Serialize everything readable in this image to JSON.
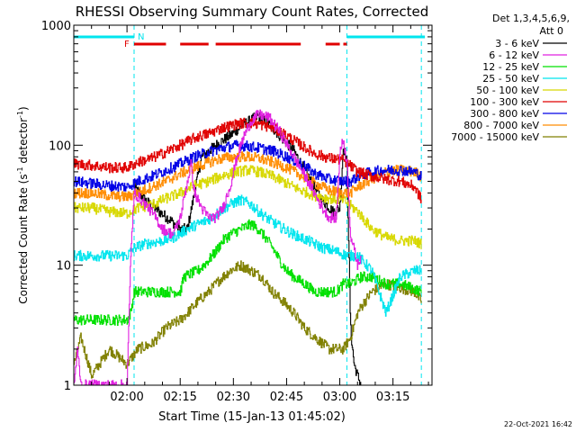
{
  "chart_data": {
    "type": "line",
    "title": "RHESSI Observing Summary Count Rates, Corrected",
    "xlabel": "Start Time (15-Jan-13 01:45:02)",
    "ylabel_main": "Corrected Count Rate (s",
    "ylabel_sup1": "-1",
    "ylabel_mid": " detector",
    "ylabel_sup2": "-1",
    "ylabel_end": ")",
    "x_unit": "minutes since 01:45:02",
    "xlim": [
      0,
      101
    ],
    "ylim": [
      1,
      1000
    ],
    "y_scale": "log",
    "x_ticks": [
      {
        "t": 15,
        "label": "02:00"
      },
      {
        "t": 30,
        "label": "02:15"
      },
      {
        "t": 45,
        "label": "02:30"
      },
      {
        "t": 60,
        "label": "02:45"
      },
      {
        "t": 75,
        "label": "03:00"
      },
      {
        "t": 90,
        "label": "03:15"
      }
    ],
    "y_ticks": [
      {
        "v": 1,
        "label": "1"
      },
      {
        "v": 10,
        "label": "10"
      },
      {
        "v": 100,
        "label": "100"
      },
      {
        "v": 1000,
        "label": "1000"
      }
    ],
    "legend_header": [
      "Det 1,3,4,5,6,9,",
      "Att 0"
    ],
    "legend_position": "right",
    "flags": {
      "night_label": "N",
      "flare_label": "F",
      "night_color": "#00e5ee",
      "flare_color": "#e00000",
      "night_bars": [
        [
          0,
          17
        ],
        [
          77,
          99
        ]
      ],
      "flare_bars": [
        [
          17,
          26
        ],
        [
          30,
          38
        ],
        [
          40,
          64
        ],
        [
          71,
          75
        ],
        [
          76,
          77
        ]
      ],
      "night_dashed_lines": [
        17,
        77,
        98
      ]
    },
    "series": [
      {
        "name": "3 - 6 keV",
        "color": "#000000",
        "points": [
          [
            17,
            45
          ],
          [
            20,
            35
          ],
          [
            24,
            28
          ],
          [
            27,
            24
          ],
          [
            30,
            20
          ],
          [
            32,
            20
          ],
          [
            34,
            40
          ],
          [
            36,
            80
          ],
          [
            40,
            100
          ],
          [
            44,
            120
          ],
          [
            48,
            150
          ],
          [
            52,
            175
          ],
          [
            55,
            150
          ],
          [
            58,
            120
          ],
          [
            62,
            90
          ],
          [
            66,
            55
          ],
          [
            70,
            35
          ],
          [
            73,
            28
          ],
          [
            75,
            30
          ],
          [
            76,
            100
          ],
          [
            77,
            70
          ],
          [
            78,
            3
          ],
          [
            79,
            1.5
          ],
          [
            80,
            1.2
          ],
          [
            81,
            1
          ]
        ]
      },
      {
        "name": "6 - 12 keV",
        "color": "#e020e0",
        "points": [
          [
            0,
            1
          ],
          [
            1,
            2
          ],
          [
            2,
            1
          ],
          [
            15,
            1
          ],
          [
            16,
            12
          ],
          [
            17,
            40
          ],
          [
            19,
            35
          ],
          [
            21,
            30
          ],
          [
            23,
            25
          ],
          [
            25,
            20
          ],
          [
            28,
            18
          ],
          [
            30,
            25
          ],
          [
            32,
            50
          ],
          [
            33,
            70
          ],
          [
            34,
            40
          ],
          [
            36,
            30
          ],
          [
            38,
            25
          ],
          [
            40,
            25
          ],
          [
            42,
            30
          ],
          [
            44,
            45
          ],
          [
            46,
            80
          ],
          [
            48,
            120
          ],
          [
            50,
            160
          ],
          [
            52,
            180
          ],
          [
            55,
            170
          ],
          [
            58,
            130
          ],
          [
            62,
            80
          ],
          [
            66,
            50
          ],
          [
            70,
            30
          ],
          [
            72,
            25
          ],
          [
            74,
            25
          ],
          [
            75,
            90
          ],
          [
            76,
            110
          ],
          [
            77,
            70
          ],
          [
            78,
            18
          ],
          [
            80,
            10
          ],
          [
            81,
            12
          ]
        ]
      },
      {
        "name": "12 - 25 keV",
        "color": "#00e000",
        "points": [
          [
            0,
            3.5
          ],
          [
            15,
            3.5
          ],
          [
            16,
            4
          ],
          [
            17,
            6
          ],
          [
            30,
            6
          ],
          [
            31,
            8
          ],
          [
            35,
            9
          ],
          [
            38,
            11
          ],
          [
            40,
            13
          ],
          [
            42,
            16
          ],
          [
            44,
            18
          ],
          [
            47,
            20
          ],
          [
            50,
            22
          ],
          [
            52,
            20
          ],
          [
            54,
            17
          ],
          [
            56,
            14
          ],
          [
            58,
            11
          ],
          [
            60,
            9
          ],
          [
            62,
            8
          ],
          [
            65,
            7
          ],
          [
            68,
            6
          ],
          [
            74,
            6
          ],
          [
            76,
            7
          ],
          [
            78,
            7
          ],
          [
            81,
            8
          ],
          [
            84,
            8
          ],
          [
            88,
            7
          ],
          [
            92,
            7
          ],
          [
            95,
            6.5
          ],
          [
            98,
            6
          ]
        ]
      },
      {
        "name": "25 - 50 keV",
        "color": "#00e5ee",
        "points": [
          [
            0,
            12
          ],
          [
            10,
            12
          ],
          [
            15,
            12
          ],
          [
            17,
            14
          ],
          [
            20,
            15
          ],
          [
            25,
            16
          ],
          [
            28,
            17
          ],
          [
            32,
            20
          ],
          [
            35,
            22
          ],
          [
            38,
            24
          ],
          [
            41,
            28
          ],
          [
            44,
            32
          ],
          [
            47,
            35
          ],
          [
            50,
            32
          ],
          [
            52,
            28
          ],
          [
            55,
            24
          ],
          [
            58,
            21
          ],
          [
            62,
            18
          ],
          [
            66,
            16
          ],
          [
            70,
            14
          ],
          [
            74,
            13
          ],
          [
            77,
            12
          ],
          [
            80,
            12
          ],
          [
            84,
            9
          ],
          [
            88,
            4
          ],
          [
            92,
            8
          ],
          [
            96,
            9
          ],
          [
            98,
            9
          ]
        ]
      },
      {
        "name": "50 - 100 keV",
        "color": "#d8d800",
        "points": [
          [
            0,
            30
          ],
          [
            5,
            30
          ],
          [
            10,
            28
          ],
          [
            15,
            27
          ],
          [
            18,
            30
          ],
          [
            22,
            32
          ],
          [
            26,
            36
          ],
          [
            30,
            40
          ],
          [
            34,
            46
          ],
          [
            38,
            50
          ],
          [
            42,
            56
          ],
          [
            46,
            60
          ],
          [
            49,
            62
          ],
          [
            52,
            60
          ],
          [
            56,
            55
          ],
          [
            60,
            48
          ],
          [
            64,
            42
          ],
          [
            68,
            38
          ],
          [
            72,
            36
          ],
          [
            76,
            35
          ],
          [
            80,
            28
          ],
          [
            84,
            20
          ],
          [
            88,
            17
          ],
          [
            92,
            16
          ],
          [
            96,
            16
          ],
          [
            98,
            15
          ]
        ]
      },
      {
        "name": "100 - 300 keV",
        "color": "#e00000",
        "points": [
          [
            0,
            70
          ],
          [
            5,
            68
          ],
          [
            10,
            65
          ],
          [
            15,
            65
          ],
          [
            18,
            72
          ],
          [
            22,
            78
          ],
          [
            26,
            88
          ],
          [
            30,
            100
          ],
          [
            34,
            115
          ],
          [
            38,
            125
          ],
          [
            42,
            140
          ],
          [
            46,
            150
          ],
          [
            49,
            155
          ],
          [
            52,
            150
          ],
          [
            56,
            140
          ],
          [
            60,
            120
          ],
          [
            64,
            100
          ],
          [
            68,
            85
          ],
          [
            72,
            78
          ],
          [
            76,
            75
          ],
          [
            80,
            60
          ],
          [
            84,
            55
          ],
          [
            88,
            52
          ],
          [
            92,
            50
          ],
          [
            96,
            45
          ],
          [
            98,
            35
          ]
        ]
      },
      {
        "name": "300 - 800 keV",
        "color": "#0000e6",
        "points": [
          [
            0,
            50
          ],
          [
            5,
            48
          ],
          [
            10,
            46
          ],
          [
            15,
            45
          ],
          [
            18,
            50
          ],
          [
            22,
            55
          ],
          [
            26,
            62
          ],
          [
            30,
            70
          ],
          [
            34,
            80
          ],
          [
            38,
            88
          ],
          [
            42,
            95
          ],
          [
            46,
            100
          ],
          [
            49,
            98
          ],
          [
            52,
            95
          ],
          [
            56,
            90
          ],
          [
            60,
            80
          ],
          [
            64,
            70
          ],
          [
            68,
            58
          ],
          [
            72,
            52
          ],
          [
            76,
            50
          ],
          [
            78,
            50
          ],
          [
            80,
            55
          ],
          [
            84,
            60
          ],
          [
            88,
            62
          ],
          [
            92,
            62
          ],
          [
            96,
            60
          ],
          [
            98,
            55
          ]
        ]
      },
      {
        "name": "800 - 7000 keV",
        "color": "#ff8c00",
        "points": [
          [
            0,
            40
          ],
          [
            5,
            40
          ],
          [
            10,
            38
          ],
          [
            15,
            37
          ],
          [
            18,
            40
          ],
          [
            22,
            45
          ],
          [
            26,
            50
          ],
          [
            30,
            58
          ],
          [
            34,
            65
          ],
          [
            38,
            72
          ],
          [
            42,
            78
          ],
          [
            46,
            80
          ],
          [
            49,
            80
          ],
          [
            52,
            78
          ],
          [
            56,
            72
          ],
          [
            60,
            65
          ],
          [
            64,
            56
          ],
          [
            68,
            48
          ],
          [
            72,
            42
          ],
          [
            76,
            40
          ],
          [
            78,
            40
          ],
          [
            80,
            45
          ],
          [
            84,
            52
          ],
          [
            88,
            60
          ],
          [
            92,
            62
          ],
          [
            96,
            60
          ],
          [
            98,
            55
          ]
        ]
      },
      {
        "name": "7000 - 15000 keV",
        "color": "#808000",
        "points": [
          [
            0,
            1.5
          ],
          [
            2,
            2.5
          ],
          [
            5,
            1.2
          ],
          [
            10,
            2
          ],
          [
            15,
            1.5
          ],
          [
            18,
            2
          ],
          [
            22,
            2.2
          ],
          [
            26,
            3
          ],
          [
            30,
            3.5
          ],
          [
            32,
            4
          ],
          [
            35,
            5
          ],
          [
            38,
            6
          ],
          [
            41,
            7.5
          ],
          [
            44,
            9
          ],
          [
            47,
            10
          ],
          [
            50,
            9
          ],
          [
            53,
            8
          ],
          [
            56,
            6
          ],
          [
            59,
            5
          ],
          [
            62,
            4
          ],
          [
            65,
            3
          ],
          [
            68,
            2.5
          ],
          [
            72,
            2
          ],
          [
            76,
            2
          ],
          [
            78,
            2.5
          ],
          [
            80,
            4
          ],
          [
            82,
            5
          ],
          [
            84,
            6
          ],
          [
            88,
            7
          ],
          [
            92,
            6.5
          ],
          [
            96,
            6
          ],
          [
            98,
            5
          ]
        ]
      }
    ]
  },
  "footer": {
    "timestamp": "22-Oct-2021 16:42"
  }
}
